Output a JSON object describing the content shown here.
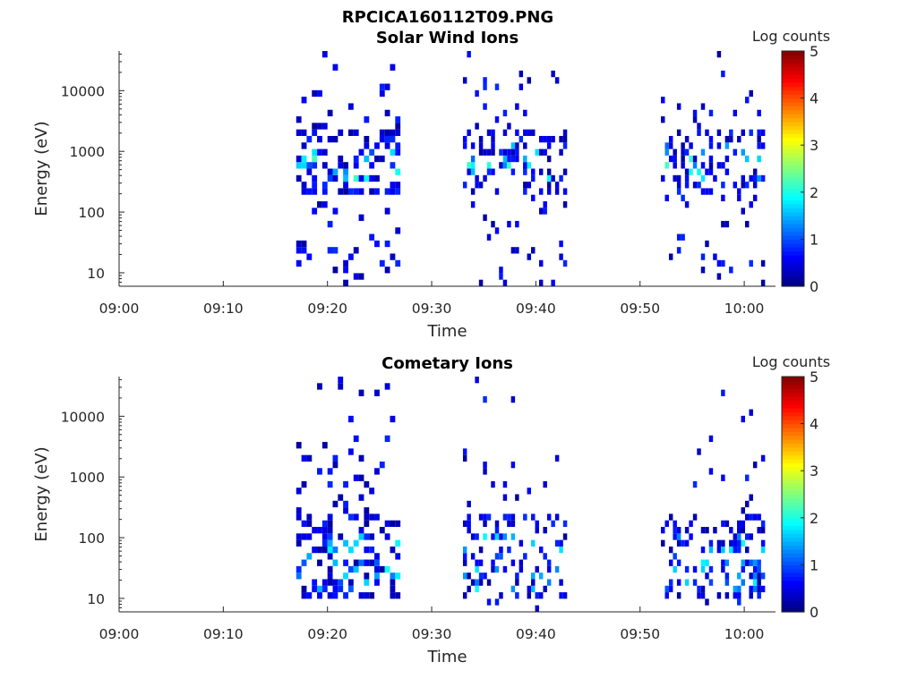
{
  "figure_title": "RPCICA160112T09.PNG",
  "chart_data": [
    {
      "type": "heatmap",
      "title": "Solar Wind Ions",
      "xlabel": "Time",
      "ylabel": "Energy (eV)",
      "x_ticks": [
        "09:00",
        "09:10",
        "09:20",
        "09:30",
        "09:40",
        "09:50",
        "10:00"
      ],
      "x_range_min": [
        0,
        63
      ],
      "y_ticks": [
        "10",
        "100",
        "1000",
        "10000"
      ],
      "y_scale": "log",
      "y_range_ev": [
        6,
        45000
      ],
      "colorbar": {
        "label": "Log counts",
        "ticks": [
          "0",
          "1",
          "2",
          "3",
          "4",
          "5"
        ],
        "range": [
          0,
          5
        ],
        "colormap": "jet"
      },
      "data_segments_min": [
        [
          17,
          27
        ],
        [
          33,
          43
        ],
        [
          52,
          62
        ]
      ],
      "peak_energy_ev": [
        300,
        1200
      ],
      "max_log_counts": 2.2
    },
    {
      "type": "heatmap",
      "title": "Cometary Ions",
      "xlabel": "Time",
      "ylabel": "Energy (eV)",
      "x_ticks": [
        "09:00",
        "09:10",
        "09:20",
        "09:30",
        "09:40",
        "09:50",
        "10:00"
      ],
      "x_range_min": [
        0,
        63
      ],
      "y_ticks": [
        "10",
        "100",
        "1000",
        "10000"
      ],
      "y_scale": "log",
      "y_range_ev": [
        6,
        45000
      ],
      "colorbar": {
        "label": "Log counts",
        "ticks": [
          "0",
          "1",
          "2",
          "3",
          "4",
          "5"
        ],
        "range": [
          0,
          5
        ],
        "colormap": "jet"
      },
      "data_segments_min": [
        [
          17,
          27
        ],
        [
          33,
          43
        ],
        [
          52,
          62
        ]
      ],
      "peak_energy_ev": [
        10,
        100
      ],
      "max_log_counts": 2.0
    }
  ]
}
